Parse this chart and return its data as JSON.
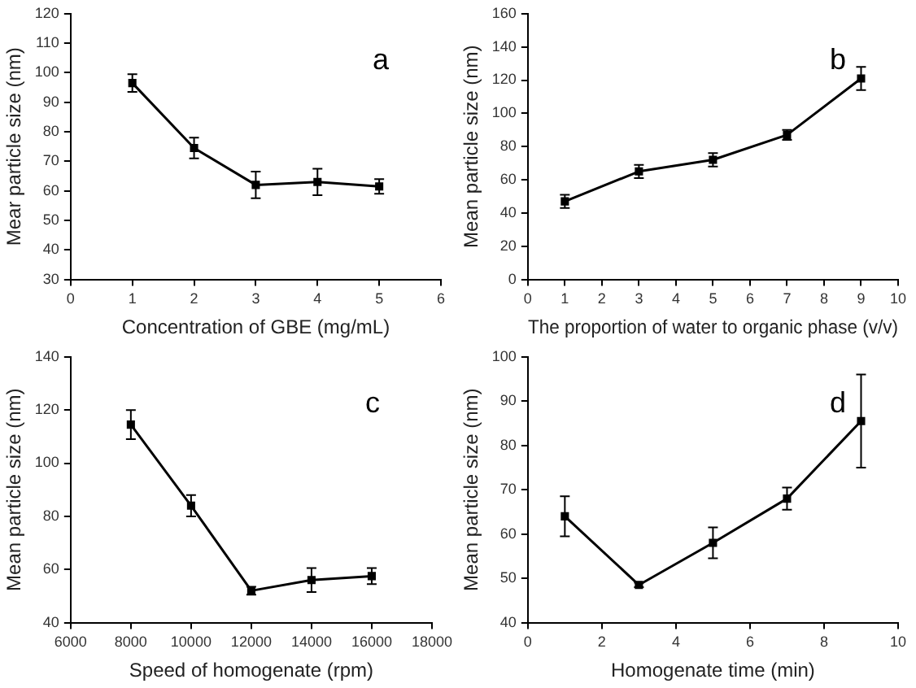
{
  "chart_data": [
    {
      "type": "line",
      "xlabel": "Concentration of GBE (mg/mL)",
      "ylabel": "Mear particle size (nm)",
      "annotations": [
        "a"
      ],
      "marker": "square",
      "line_style": "solid",
      "grid": false,
      "legend": false,
      "x": [
        1,
        2,
        3,
        4,
        5
      ],
      "xlim": [
        0,
        6
      ],
      "xticks": [
        0,
        1,
        2,
        3,
        4,
        5,
        6
      ],
      "ylim": [
        30,
        120
      ],
      "yticks": [
        30,
        40,
        50,
        60,
        70,
        80,
        90,
        100,
        110,
        120
      ],
      "series": [
        {
          "color": "#000000",
          "values": [
            96.5,
            74.5,
            62,
            63,
            61.5
          ],
          "errors": [
            3,
            3.5,
            4.5,
            4.5,
            2.5
          ]
        }
      ]
    },
    {
      "type": "line",
      "xlabel": "The proportion of water to organic phase (v/v)",
      "ylabel": "Mean particle size (nm)",
      "annotations": [
        "b"
      ],
      "marker": "square",
      "line_style": "solid",
      "grid": false,
      "legend": false,
      "x": [
        1,
        3,
        5,
        7,
        9
      ],
      "xlim": [
        0,
        10
      ],
      "xticks": [
        0,
        1,
        2,
        3,
        4,
        5,
        6,
        7,
        8,
        9,
        10
      ],
      "ylim": [
        0,
        160
      ],
      "yticks": [
        0,
        20,
        40,
        60,
        80,
        100,
        120,
        140,
        160
      ],
      "series": [
        {
          "color": "#000000",
          "values": [
            47,
            65,
            72,
            87,
            121
          ],
          "errors": [
            4,
            4,
            4,
            3,
            7
          ]
        }
      ]
    },
    {
      "type": "line",
      "xlabel": "Speed of homogenate (rpm)",
      "ylabel": "Mean particle size (nm)",
      "annotations": [
        "c"
      ],
      "marker": "square",
      "line_style": "solid",
      "grid": false,
      "legend": false,
      "x": [
        8000,
        10000,
        12000,
        14000,
        16000
      ],
      "xlim": [
        6000,
        18000
      ],
      "xticks": [
        6000,
        8000,
        10000,
        12000,
        14000,
        16000,
        18000
      ],
      "ylim": [
        40,
        140
      ],
      "yticks": [
        40,
        60,
        80,
        100,
        120,
        140
      ],
      "series": [
        {
          "color": "#000000",
          "values": [
            114.5,
            84,
            52,
            56,
            57.5
          ],
          "errors": [
            5.5,
            4,
            1.5,
            4.5,
            3
          ]
        }
      ]
    },
    {
      "type": "line",
      "xlabel": "Homogenate time (min)",
      "ylabel": "Mean particle size (nm)",
      "annotations": [
        "d"
      ],
      "marker": "square",
      "line_style": "solid",
      "grid": false,
      "legend": false,
      "x": [
        1,
        3,
        5,
        7,
        9
      ],
      "xlim": [
        0,
        10
      ],
      "xticks": [
        0,
        2,
        4,
        6,
        8,
        10
      ],
      "ylim": [
        40,
        100
      ],
      "yticks": [
        40,
        50,
        60,
        70,
        80,
        90,
        100
      ],
      "series": [
        {
          "color": "#000000",
          "values": [
            64,
            48.5,
            58,
            68,
            85.5
          ],
          "errors": [
            4.5,
            0.5,
            3.5,
            2.5,
            10.5
          ]
        }
      ]
    }
  ]
}
